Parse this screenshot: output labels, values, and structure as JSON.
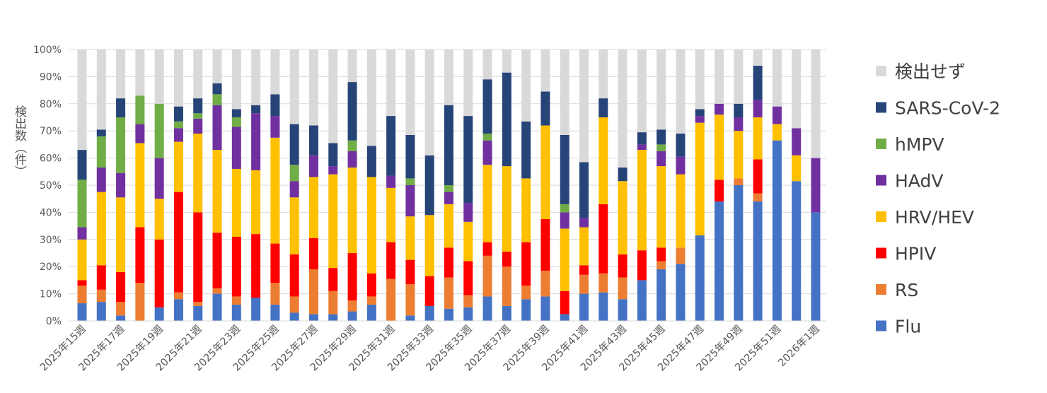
{
  "chart_data": {
    "type": "bar",
    "stacked": true,
    "ylabel": "検出数（件）",
    "ylim": [
      0,
      100
    ],
    "y_ticks": [
      "0%",
      "10%",
      "20%",
      "30%",
      "40%",
      "50%",
      "60%",
      "70%",
      "80%",
      "90%",
      "100%"
    ],
    "grid": true,
    "legend_position": "right",
    "categories": [
      "2025年15週",
      "2025年16週",
      "2025年17週",
      "2025年18週",
      "2025年19週",
      "2025年20週",
      "2025年21週",
      "2025年22週",
      "2025年23週",
      "2025年24週",
      "2025年25週",
      "2025年26週",
      "2025年27週",
      "2025年28週",
      "2025年29週",
      "2025年30週",
      "2025年31週",
      "2025年32週",
      "2025年33週",
      "2025年34週",
      "2025年35週",
      "2025年36週",
      "2025年37週",
      "2025年38週",
      "2025年39週",
      "2025年40週",
      "2025年41週",
      "2025年42週",
      "2025年43週",
      "2025年44週",
      "2025年45週",
      "2025年46週",
      "2025年47週",
      "2025年48週",
      "2025年49週",
      "2025年50週",
      "2025年51週",
      "2025年52週",
      "2026年1週"
    ],
    "x_tick_labels": [
      "2025年15週",
      "",
      "2025年17週",
      "",
      "2025年19週",
      "",
      "2025年21週",
      "",
      "2025年23週",
      "",
      "2025年25週",
      "",
      "2025年27週",
      "",
      "2025年29週",
      "",
      "2025年31週",
      "",
      "2025年33週",
      "",
      "2025年35週",
      "",
      "2025年37週",
      "",
      "2025年39週",
      "",
      "2025年41週",
      "",
      "2025年43週",
      "",
      "2025年45週",
      "",
      "2025年47週",
      "",
      "2025年49週",
      "",
      "2025年51週",
      "",
      "2026年1週"
    ],
    "series": [
      {
        "name": "Flu",
        "color": "#4472C4",
        "values": [
          6.5,
          7,
          2,
          0,
          5,
          8,
          5.5,
          10,
          6,
          8.5,
          6,
          3,
          2.5,
          2.5,
          3.5,
          6,
          0,
          2,
          5.5,
          4.5,
          5,
          9,
          5.5,
          8,
          9,
          2.5,
          10,
          10.5,
          8,
          15,
          19,
          21,
          31.5,
          44,
          50,
          44,
          66.5,
          51.5,
          40
        ]
      },
      {
        "name": "RS",
        "color": "#ED7D31",
        "values": [
          6.5,
          4.5,
          5,
          14,
          0,
          2.5,
          1.5,
          2,
          3,
          0,
          8,
          6,
          16.5,
          8.5,
          4,
          3,
          15.5,
          11.5,
          0,
          11.5,
          4.5,
          15,
          14.5,
          5,
          9.5,
          0,
          7,
          7,
          8,
          0,
          3,
          6,
          0,
          0,
          2.5,
          3,
          0,
          0,
          0
        ]
      },
      {
        "name": "HPIV",
        "color": "#FF0000",
        "values": [
          2,
          9,
          11,
          20.5,
          25,
          37,
          33,
          20.5,
          22,
          23.5,
          14.5,
          15.5,
          11.5,
          8.5,
          17.5,
          8.5,
          13.5,
          9,
          11,
          11,
          12.5,
          5,
          5.5,
          16,
          19,
          8.5,
          3.5,
          25.5,
          8.5,
          11,
          5,
          0,
          0,
          8,
          0,
          12.5,
          0,
          0,
          0
        ]
      },
      {
        "name": "HRV/HEV",
        "color": "#FFC000",
        "values": [
          15,
          27,
          27.5,
          31,
          15,
          18.5,
          29,
          30.5,
          25,
          23.5,
          39,
          21,
          22.5,
          34.5,
          31.5,
          35.5,
          20,
          16,
          22.5,
          16,
          14.5,
          28.5,
          31.5,
          23.5,
          34.5,
          23,
          14,
          32,
          27,
          37,
          30,
          27,
          41.5,
          24,
          17.5,
          15.5,
          6,
          9.5,
          0
        ]
      },
      {
        "name": "HAdV",
        "color": "#7030A0",
        "values": [
          4.5,
          9,
          9,
          7,
          15,
          5,
          5.5,
          16.5,
          15.5,
          21,
          8,
          6,
          8,
          3,
          6,
          0,
          4.5,
          11.5,
          0,
          4.5,
          7,
          9,
          0,
          0,
          0,
          6,
          3.5,
          0,
          0,
          2,
          5.5,
          6.5,
          2.5,
          4,
          5,
          6.5,
          6.5,
          10,
          20
        ]
      },
      {
        "name": "hMPV",
        "color": "#70AD47",
        "values": [
          17.5,
          11.5,
          20.5,
          10.5,
          20,
          2.5,
          2,
          4,
          3.5,
          0,
          0,
          6,
          0,
          0,
          4,
          0,
          0,
          2.5,
          0,
          2.5,
          0,
          2.5,
          0,
          0,
          0,
          3,
          0,
          0,
          0,
          0,
          2.5,
          0,
          0,
          0,
          0,
          0,
          0,
          0,
          0
        ]
      },
      {
        "name": "SARS-CoV-2",
        "color": "#264478",
        "values": [
          11,
          2.5,
          7,
          0,
          0,
          5.5,
          5.5,
          4,
          3,
          3,
          8,
          15,
          11,
          8.5,
          21.5,
          11.5,
          22,
          16,
          22,
          29.5,
          32,
          20,
          34.5,
          21,
          12.5,
          25.5,
          20.5,
          7,
          5,
          4.5,
          5.5,
          8.5,
          2.5,
          0,
          5,
          12.5,
          0,
          0,
          0
        ]
      },
      {
        "name": "検出せず",
        "color": "#D9D9D9",
        "values": [
          37,
          29.5,
          18,
          17,
          20,
          21,
          18,
          12.5,
          22,
          20.5,
          16.5,
          27.5,
          28,
          34.5,
          12,
          35.5,
          24.5,
          31.5,
          39,
          20.5,
          24.5,
          11,
          8.5,
          26.5,
          15.5,
          31.5,
          41.5,
          18,
          43.5,
          30.5,
          29.5,
          31,
          22,
          20,
          20,
          6,
          21,
          29,
          40
        ]
      }
    ]
  }
}
